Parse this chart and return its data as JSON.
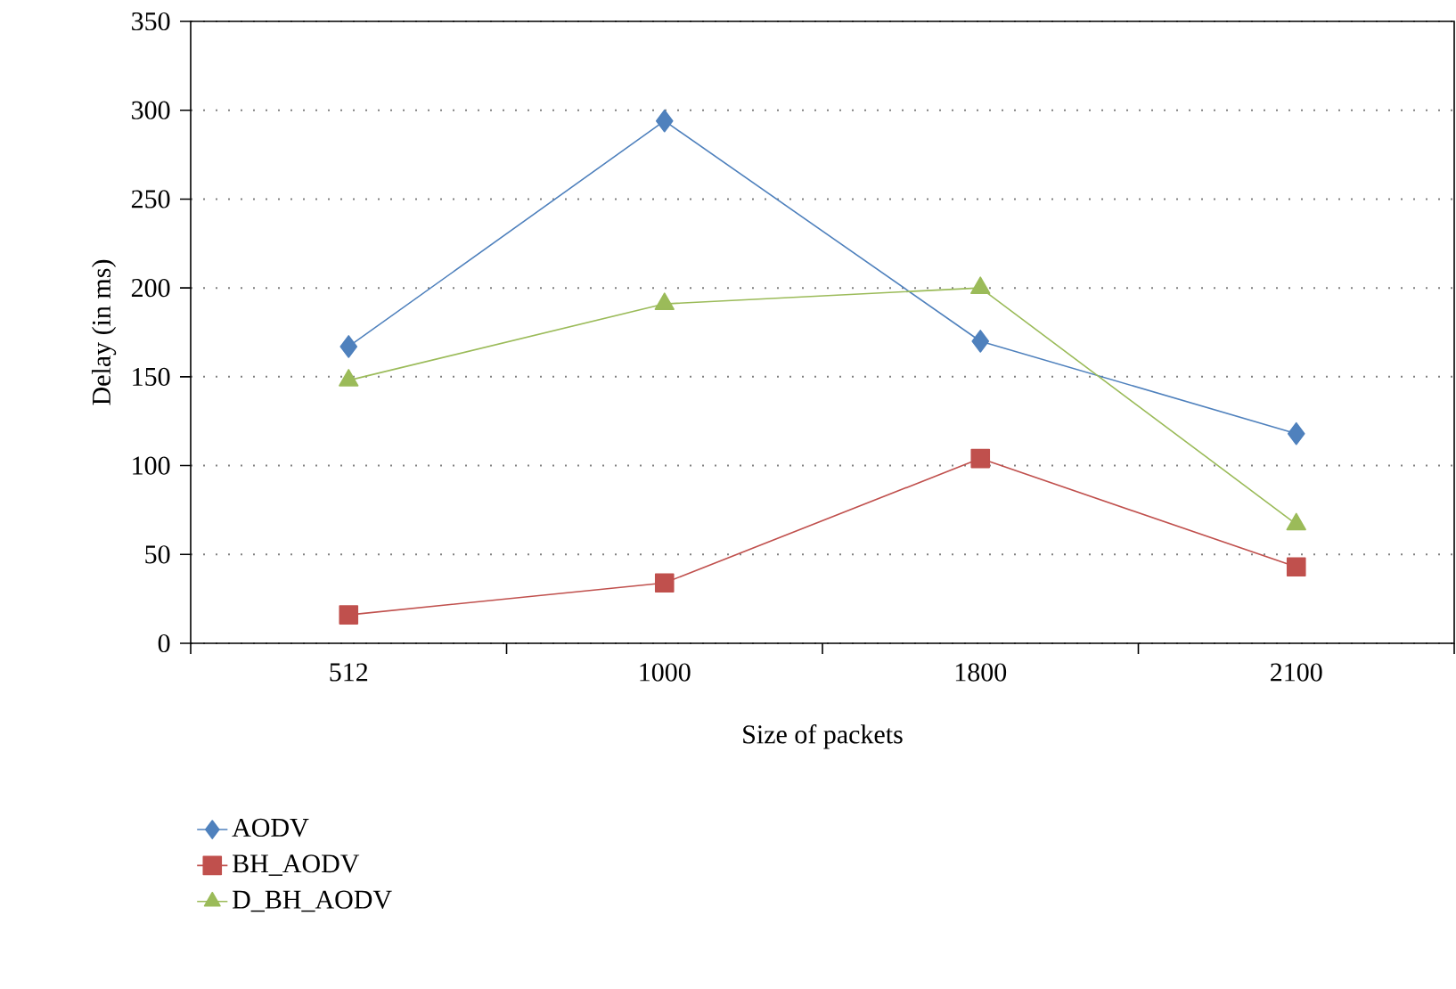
{
  "chart_data": {
    "type": "line",
    "xlabel": "Size of packets",
    "ylabel": "Delay (in ms)",
    "categories": [
      "512",
      "1000",
      "1800",
      "2100"
    ],
    "series": [
      {
        "name": "AODV",
        "color": "#4f81bd",
        "marker": "diamond",
        "values": [
          167,
          294,
          170,
          118
        ]
      },
      {
        "name": "BH_AODV",
        "color": "#c0504d",
        "marker": "square",
        "values": [
          16,
          34,
          104,
          43
        ]
      },
      {
        "name": "D_BH_AODV",
        "color": "#9bbb59",
        "marker": "triangle",
        "values": [
          148,
          191,
          200,
          67
        ]
      }
    ],
    "ylim": [
      0,
      350
    ],
    "yticks": [
      0,
      50,
      100,
      150,
      200,
      250,
      300,
      350
    ],
    "grid": "y",
    "legend": "bottom left",
    "line_style": "solid"
  }
}
